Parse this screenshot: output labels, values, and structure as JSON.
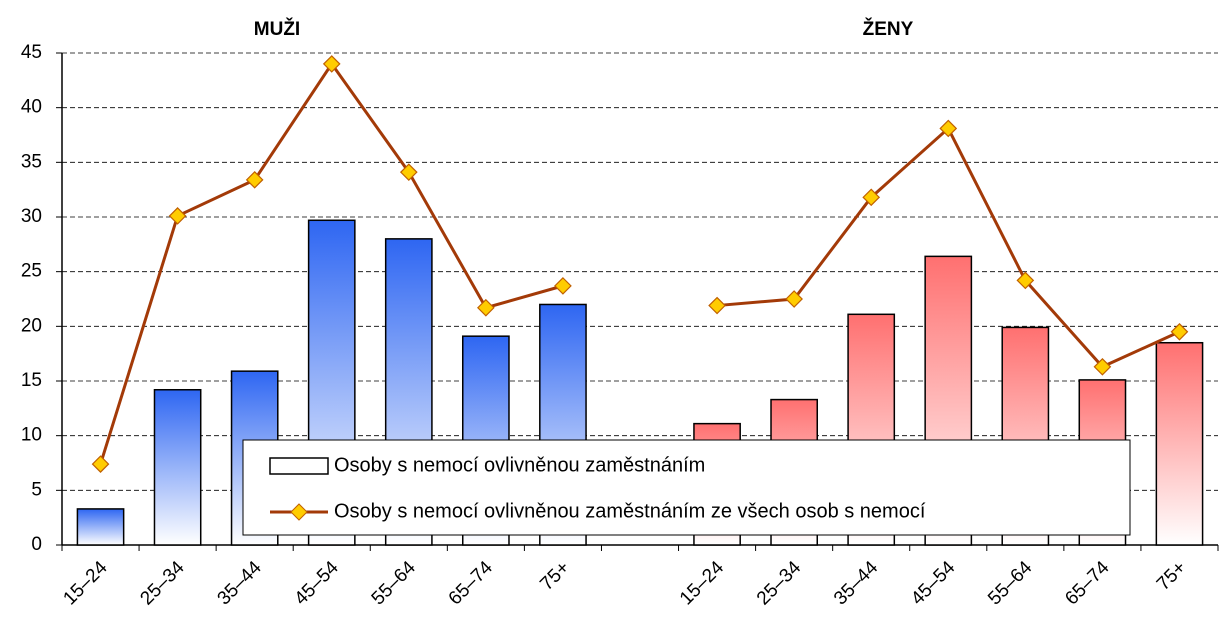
{
  "chart_data": {
    "type": "bar",
    "group_titles": [
      "MUŽI",
      "ŽENY"
    ],
    "categories": [
      "15–24",
      "25–34",
      "35–44",
      "45–54",
      "55–64",
      "65–74",
      "75+",
      null,
      "15–24",
      "25–34",
      "35–44",
      "45–54",
      "55–64",
      "65–74",
      "75+"
    ],
    "series": [
      {
        "name": "Osoby s nemocí ovlivněnou zaměstnáním",
        "type": "bar",
        "colors": [
          "#2e66f2",
          "#2e66f2",
          "#2e66f2",
          "#2e66f2",
          "#2e66f2",
          "#2e66f2",
          "#2e66f2",
          null,
          "#ff7070",
          "#ff7070",
          "#ff7070",
          "#ff7070",
          "#ff7070",
          "#ff7070",
          "#ff7070"
        ],
        "values": [
          3.3,
          14.2,
          15.9,
          29.7,
          28,
          19.1,
          22,
          null,
          11.1,
          13.3,
          21.1,
          26.4,
          19.9,
          15.1,
          18.5
        ]
      },
      {
        "name": "Osoby s nemocí ovlivněnou zaměstnáním ze všech osob s nemocí",
        "type": "line",
        "color": "#a33a08",
        "marker_color": "#ffcc00",
        "values": [
          7.4,
          30.1,
          33.4,
          44,
          34.1,
          21.7,
          23.7,
          null,
          21.9,
          22.5,
          31.8,
          38.1,
          24.2,
          16.3,
          19.5
        ]
      }
    ],
    "ylim": [
      0,
      45
    ],
    "yticks": [
      0,
      5,
      10,
      15,
      20,
      25,
      30,
      35,
      40,
      45
    ],
    "grid": true
  }
}
